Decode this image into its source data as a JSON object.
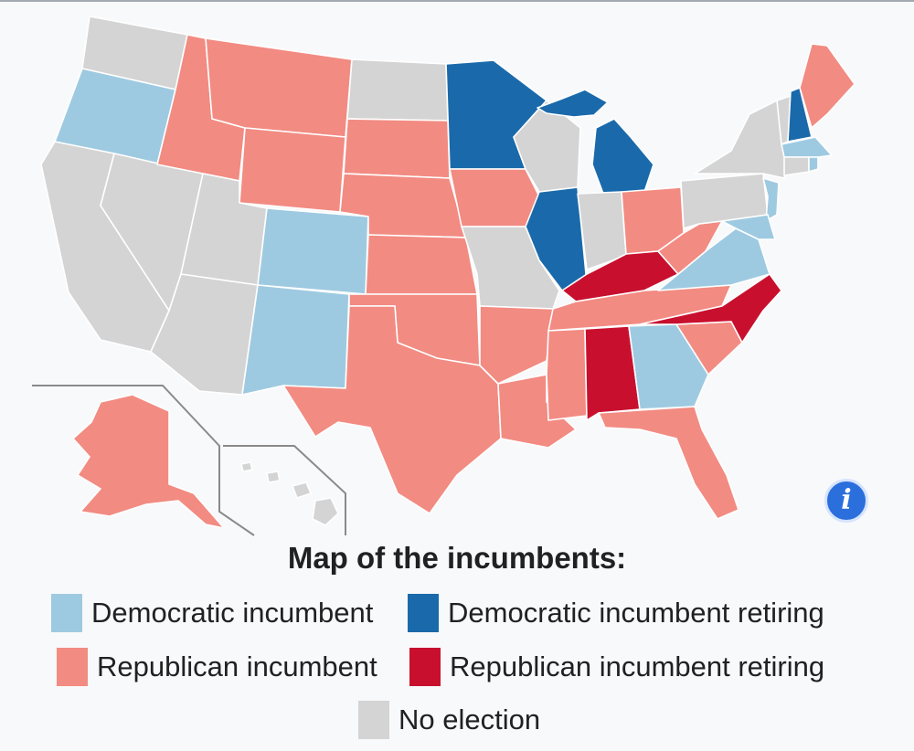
{
  "colors": {
    "dem_incumbent": "#9ecae1",
    "dem_retiring": "#1a6aab",
    "rep_incumbent": "#f28b82",
    "rep_retiring": "#c8102e",
    "no_election": "#d4d4d4"
  },
  "info_icon": {
    "name": "info-icon",
    "glyph": "i"
  },
  "legend": {
    "title": "Map of the incumbents:",
    "items": [
      {
        "key": "dem_incumbent",
        "label": "Democratic incumbent"
      },
      {
        "key": "dem_retiring",
        "label": "Democratic incumbent retiring"
      },
      {
        "key": "rep_incumbent",
        "label": "Republican incumbent"
      },
      {
        "key": "rep_retiring",
        "label": "Republican incumbent retiring"
      },
      {
        "key": "no_election",
        "label": "No election"
      }
    ]
  }
}
